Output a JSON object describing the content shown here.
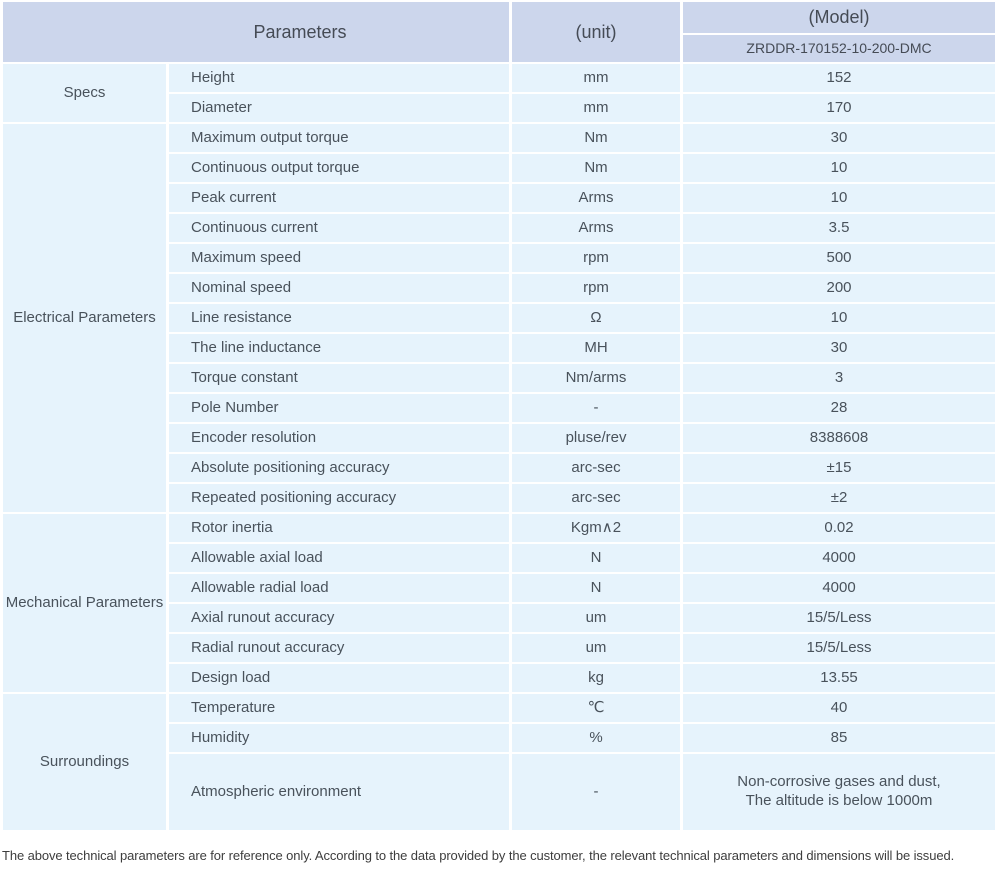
{
  "colors": {
    "header_bg": "#ccd6ec",
    "row_bg": "#e6f3fc",
    "text": "#49525b",
    "separator": "#ffffff"
  },
  "header": {
    "parameters_label": "Parameters",
    "unit_label": "(unit)",
    "model_label": "(Model)",
    "model_value": "ZRDDR-170152-10-200-DMC"
  },
  "groups": [
    {
      "name": "Specs",
      "rows": [
        {
          "parameter": "Height",
          "unit": "mm",
          "value": "152"
        },
        {
          "parameter": "Diameter",
          "unit": "mm",
          "value": "170"
        }
      ]
    },
    {
      "name": "Electrical Parameters",
      "rows": [
        {
          "parameter": "Maximum output torque",
          "unit": "Nm",
          "value": "30"
        },
        {
          "parameter": "Continuous output torque",
          "unit": "Nm",
          "value": "10"
        },
        {
          "parameter": "Peak current",
          "unit": "Arms",
          "value": "10"
        },
        {
          "parameter": "Continuous current",
          "unit": "Arms",
          "value": "3.5"
        },
        {
          "parameter": "Maximum speed",
          "unit": "rpm",
          "value": "500"
        },
        {
          "parameter": "Nominal speed",
          "unit": "rpm",
          "value": "200"
        },
        {
          "parameter": "Line resistance",
          "unit": "Ω",
          "value": "10"
        },
        {
          "parameter": "The line inductance",
          "unit": "MH",
          "value": "30"
        },
        {
          "parameter": "Torque constant",
          "unit": "Nm/arms",
          "value": "3"
        },
        {
          "parameter": "Pole Number",
          "unit": "-",
          "value": "28"
        },
        {
          "parameter": "Encoder resolution",
          "unit": "pluse/rev",
          "value": "8388608"
        },
        {
          "parameter": "Absolute positioning accuracy",
          "unit": "arc-sec",
          "value": "±15"
        },
        {
          "parameter": "Repeated positioning accuracy",
          "unit": "arc-sec",
          "value": "±2"
        }
      ]
    },
    {
      "name": "Mechanical Parameters",
      "rows": [
        {
          "parameter": "Rotor inertia",
          "unit": "Kgm∧2",
          "value": "0.02"
        },
        {
          "parameter": "Allowable axial load",
          "unit": "N",
          "value": "4000"
        },
        {
          "parameter": "Allowable radial load",
          "unit": "N",
          "value": "4000"
        },
        {
          "parameter": "Axial runout accuracy",
          "unit": "um",
          "value": "15/5/Less"
        },
        {
          "parameter": "Radial runout accuracy",
          "unit": "um",
          "value": "15/5/Less"
        },
        {
          "parameter": "Design load",
          "unit": "kg",
          "value": "13.55"
        }
      ]
    },
    {
      "name": "Surroundings",
      "rows": [
        {
          "parameter": "Temperature",
          "unit": "℃",
          "value": "40"
        },
        {
          "parameter": "Humidity",
          "unit": "%",
          "value": "85"
        },
        {
          "parameter": "Atmospheric environment",
          "unit": "-",
          "value": "Non-corrosive gases and dust,\nThe altitude is below 1000m"
        }
      ]
    }
  ],
  "footer": {
    "note": "The above technical parameters are for reference only. According to the data provided by the customer, the relevant technical parameters and dimensions will be issued."
  }
}
